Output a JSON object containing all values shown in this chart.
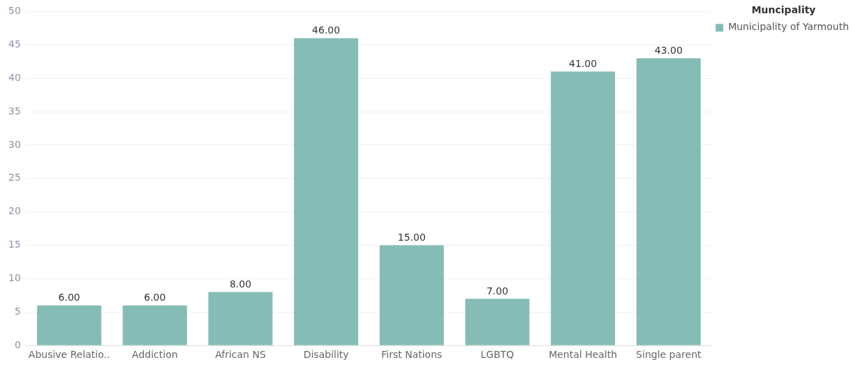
{
  "chart_data": {
    "type": "bar",
    "legend_title": "Muncipality",
    "categories": [
      "Abusive Relatio..",
      "Addiction",
      "African NS",
      "Disability",
      "First Nations",
      "LGBTQ",
      "Mental Health",
      "Single parent"
    ],
    "series": [
      {
        "name": "Municipality of Yarmouth",
        "color": "#86bcb6",
        "values": [
          6,
          6,
          8,
          46,
          15,
          7,
          41,
          43
        ],
        "value_labels": [
          "6.00",
          "6.00",
          "8.00",
          "46.00",
          "15.00",
          "7.00",
          "41.00",
          "43.00"
        ]
      }
    ],
    "ylim": [
      0,
      50
    ],
    "yticks": [
      0,
      5,
      10,
      15,
      20,
      25,
      30,
      35,
      40,
      45,
      50
    ],
    "grid": "y",
    "legend": "top right"
  }
}
